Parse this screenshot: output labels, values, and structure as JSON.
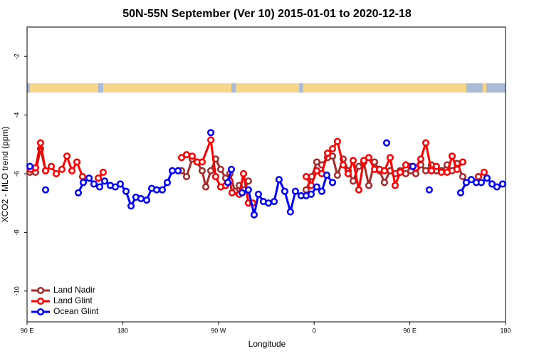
{
  "chart_data": {
    "type": "line",
    "title": "50N-55N September (Ver 10)   2015-01-01 to 2020-12-18",
    "x_label": "Longitude",
    "y_label": "XCO2 - MLO trend (ppm)",
    "xlim": [
      90,
      540
    ],
    "xticks": [
      {
        "value": 90,
        "label": "90 E"
      },
      180,
      {
        "value": 270,
        "label": "90 W"
      },
      {
        "value": 360,
        "label": "0"
      },
      {
        "value": 450,
        "label": "90 E"
      },
      {
        "value": 540,
        "label": "180"
      }
    ],
    "ylim": [
      -11.05,
      -1
    ],
    "yticks": [
      -10,
      -8,
      -6,
      -4,
      -2
    ],
    "grid": false,
    "legend": "bottom-left",
    "series": [
      {
        "name": "Land Nadir",
        "color": "#a52a2a",
        "x": [
          92.7,
          98.0,
          102.7,
          107.4,
          null,
          235.3,
          240.0,
          245.3,
          250.0,
          254.7,
          258.1,
          262.8,
          267.4,
          272.1,
          276.8,
          280.8,
          285.5,
          289.5,
          294.2,
          298.2,
          null,
          352.5,
          357.8,
          362.5,
          367.2,
          372.6,
          377.3,
          381.9,
          387.3,
          392.0,
          396.7,
          402.0,
          406.7,
          411.4,
          416.8,
          421.5,
          426.1,
          431.5,
          436.2,
          440.9,
          446.2,
          450.9,
          455.6,
          460.3,
          465.0,
          470.3,
          475.0,
          479.7,
          485.1,
          489.8,
          494.4,
          499.8
        ],
        "values": [
          -5.95,
          -5.95,
          -5.15,
          -5.9,
          null,
          -5.9,
          -6.1,
          -5.5,
          -5.6,
          -5.9,
          -6.45,
          -5.9,
          -5.5,
          -5.85,
          -6.15,
          -6.0,
          -6.6,
          -6.4,
          -6.55,
          -6.25,
          null,
          -6.55,
          -6.1,
          -5.6,
          -5.7,
          -5.45,
          -5.4,
          -6.05,
          -5.5,
          -5.9,
          -6.25,
          -5.75,
          -5.6,
          -6.4,
          -5.6,
          -5.9,
          -6.3,
          -5.9,
          -6.0,
          -5.9,
          -6.0,
          -5.9,
          -6.0,
          -5.7,
          -5.9,
          -5.7,
          -5.9,
          -5.9,
          -5.7,
          -5.9,
          -5.65,
          -6.1
        ]
      },
      {
        "name": "Land Glint",
        "color": "#ff0000",
        "x": [
          93.3,
          98.0,
          102.7,
          107.4,
          112.8,
          117.5,
          122.8,
          127.5,
          132.2,
          136.9,
          142.2,
          null,
          157.0,
          161.6,
          null,
          235.3,
          240.0,
          245.3,
          250.0,
          254.7,
          262.8,
          267.4,
          272.1,
          276.8,
          280.8,
          282.8,
          289.5,
          293.6,
          298.2,
          302.3,
          null,
          352.5,
          357.2,
          362.5,
          367.2,
          372.6,
          377.3,
          381.9,
          387.3,
          392.0,
          396.7,
          402.0,
          406.7,
          411.4,
          416.8,
          421.5,
          426.1,
          431.5,
          436.2,
          440.9,
          446.2,
          450.9,
          455.6,
          460.3,
          465.0,
          470.3,
          475.0,
          479.7,
          485.1,
          489.8,
          494.4,
          499.8,
          null,
          514.5,
          519.9
        ],
        "values": [
          -5.85,
          -5.8,
          -4.95,
          -5.9,
          -5.75,
          -6.0,
          -5.85,
          -5.4,
          -5.9,
          -5.6,
          -6.1,
          null,
          -6.15,
          -5.95,
          null,
          -5.45,
          -5.35,
          -5.4,
          -5.6,
          -5.6,
          -4.85,
          -6.1,
          -6.45,
          -6.4,
          -6.25,
          -6.65,
          -6.7,
          -6.0,
          -7.0,
          -7.0,
          null,
          -6.1,
          -6.4,
          -5.9,
          -6.0,
          -5.3,
          -5.15,
          -4.9,
          -5.7,
          -6.0,
          -5.55,
          -6.55,
          -5.55,
          -5.45,
          -5.85,
          -5.85,
          -5.9,
          -5.45,
          -6.4,
          -5.95,
          -5.7,
          -5.75,
          -5.8,
          -5.5,
          -4.95,
          -5.9,
          -5.75,
          -5.95,
          -5.95,
          -5.4,
          -5.85,
          -5.6,
          null,
          -6.1,
          -5.95
        ]
      },
      {
        "name": "Ocean Glint",
        "color": "#0000ff",
        "x": [
          92.7,
          null,
          107.4,
          null,
          138.2,
          142.9,
          148.3,
          152.9,
          158.3,
          163.0,
          168.3,
          173.0,
          177.7,
          183.1,
          187.8,
          192.4,
          197.1,
          202.5,
          207.2,
          211.9,
          217.2,
          221.9,
          226.6,
          232.0,
          null,
          262.8,
          null,
          278.8,
          282.2,
          null,
          292.2,
          298.2,
          303.6,
          307.6,
          312.3,
          317.0,
          322.4,
          327.0,
          332.4,
          337.7,
          342.4,
          347.8,
          352.5,
          357.2,
          362.5,
          367.2,
          371.9,
          377.3,
          null,
          428.2,
          null,
          452.9,
          null,
          468.3,
          null,
          497.8,
          503.1,
          507.8,
          512.5,
          517.2,
          522.6,
          527.3,
          531.9,
          537.3
        ],
        "values": [
          -5.75,
          null,
          -6.55,
          null,
          -6.65,
          -6.3,
          -6.15,
          -6.35,
          -6.45,
          -6.25,
          -6.4,
          -6.45,
          -6.35,
          -6.6,
          -7.1,
          -6.8,
          -6.85,
          -6.9,
          -6.5,
          -6.55,
          -6.55,
          -6.3,
          -5.9,
          -5.9,
          null,
          -4.6,
          null,
          -6.3,
          -5.85,
          null,
          -6.65,
          -6.55,
          -7.4,
          -6.7,
          -6.95,
          -7.0,
          -6.95,
          -6.2,
          -6.6,
          -7.3,
          -6.6,
          -6.75,
          -6.75,
          -6.7,
          -6.45,
          -6.6,
          -6.05,
          -6.3,
          null,
          -4.95,
          null,
          -5.75,
          null,
          -6.55,
          null,
          -6.65,
          -6.3,
          -6.2,
          -6.3,
          -6.3,
          -6.15,
          -6.35,
          -6.45,
          -6.35
        ]
      }
    ]
  }
}
